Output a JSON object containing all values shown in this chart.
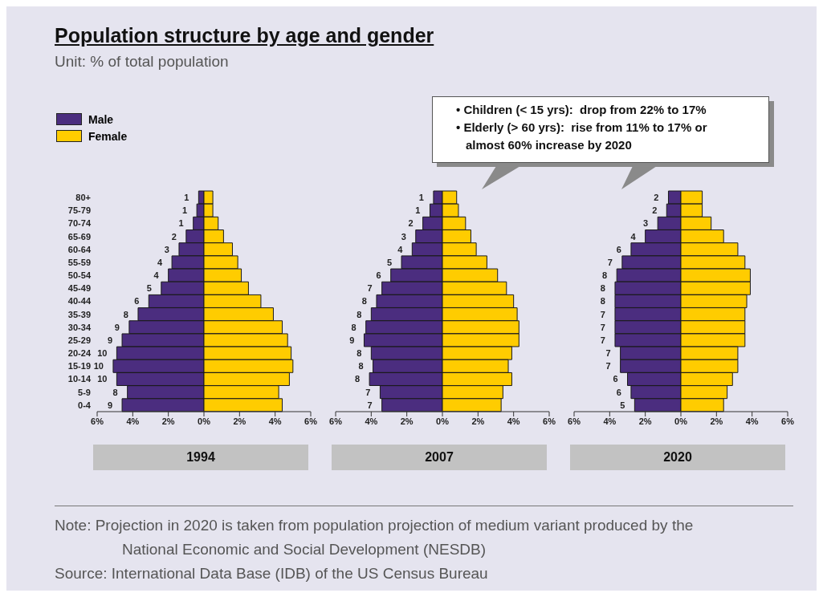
{
  "chart_data": [
    {
      "type": "bar",
      "orientation": "horizontal",
      "stacked": true,
      "title": "Population structure by age and gender",
      "subtitle": "Unit: % of total population",
      "xlabel": "1994",
      "legend": "top left",
      "categories": [
        "80+",
        "75-79",
        "70-74",
        "65-69",
        "60-64",
        "55-59",
        "50-54",
        "45-49",
        "40-44",
        "35-39",
        "30-34",
        "25-29",
        "20-24",
        "15-19",
        "10-14",
        "5-9",
        "0-4"
      ],
      "series": [
        {
          "name": "Male",
          "color": "#4b2d7f",
          "values": [
            -0.3,
            -0.4,
            -0.6,
            -1.0,
            -1.4,
            -1.8,
            -2.0,
            -2.4,
            -3.1,
            -3.7,
            -4.2,
            -4.6,
            -4.9,
            -5.1,
            -4.9,
            -4.3,
            -4.6
          ]
        },
        {
          "name": "Female",
          "color": "#ffcc00",
          "values": [
            0.5,
            0.5,
            0.8,
            1.1,
            1.6,
            1.9,
            2.1,
            2.5,
            3.2,
            3.9,
            4.4,
            4.7,
            4.9,
            5.0,
            4.8,
            4.2,
            4.4
          ]
        }
      ],
      "xlim": [
        -6,
        6
      ],
      "xticks": [
        {
          "value": -6,
          "label": "6%"
        },
        {
          "value": -4,
          "label": "4%"
        },
        {
          "value": -2,
          "label": "2%"
        },
        {
          "value": 0,
          "label": "0%"
        },
        {
          "value": 2,
          "label": "2%"
        },
        {
          "value": 4,
          "label": "4%"
        },
        {
          "value": 6,
          "label": "6%"
        }
      ],
      "annotations": [
        {
          "text": "1",
          "x": -0.3,
          "y": "80+"
        },
        {
          "text": "1",
          "x": -0.4,
          "y": "75-79"
        },
        {
          "text": "1",
          "x": -0.6,
          "y": "70-74"
        },
        {
          "text": "2",
          "x": -1.0,
          "y": "65-69"
        },
        {
          "text": "3",
          "x": -1.4,
          "y": "60-64"
        },
        {
          "text": "4",
          "x": -1.8,
          "y": "55-59"
        },
        {
          "text": "4",
          "x": -2.0,
          "y": "50-54"
        },
        {
          "text": "5",
          "x": -2.4,
          "y": "45-49"
        },
        {
          "text": "6",
          "x": -3.1,
          "y": "40-44"
        },
        {
          "text": "8",
          "x": -3.7,
          "y": "35-39"
        },
        {
          "text": "9",
          "x": -4.2,
          "y": "30-34"
        },
        {
          "text": "9",
          "x": -4.6,
          "y": "25-29"
        },
        {
          "text": "10",
          "x": -4.9,
          "y": "20-24"
        },
        {
          "text": "10",
          "x": -5.1,
          "y": "15-19"
        },
        {
          "text": "10",
          "x": -4.9,
          "y": "10-14"
        },
        {
          "text": "8",
          "x": -4.3,
          "y": "5-9"
        },
        {
          "text": "9",
          "x": -4.6,
          "y": "0-4"
        },
        "Note: Projection in 2020 is taken from population projection of medium variant produced by the National Economic and Social Development (NESDB)",
        "Source: International Data Base (IDB) of the US Census Bureau"
      ]
    },
    {
      "type": "bar",
      "orientation": "horizontal",
      "stacked": true,
      "xlabel": "2007",
      "tick_labels": "x",
      "categories": [
        "80+",
        "75-79",
        "70-74",
        "65-69",
        "60-64",
        "55-59",
        "50-54",
        "45-49",
        "40-44",
        "35-39",
        "30-34",
        "25-29",
        "20-24",
        "15-19",
        "10-14",
        "5-9",
        "0-4"
      ],
      "series": [
        {
          "color": "#4b2d7f",
          "values": [
            -0.5,
            -0.7,
            -1.1,
            -1.5,
            -1.7,
            -2.3,
            -2.9,
            -3.4,
            -3.7,
            -4.0,
            -4.3,
            -4.4,
            -4.0,
            -3.9,
            -4.1,
            -3.5,
            -3.4
          ]
        },
        {
          "color": "#ffcc00",
          "values": [
            0.8,
            0.9,
            1.3,
            1.6,
            1.9,
            2.5,
            3.1,
            3.6,
            4.0,
            4.2,
            4.3,
            4.3,
            3.9,
            3.7,
            3.9,
            3.4,
            3.3
          ]
        }
      ],
      "xlim": [
        -6,
        6
      ],
      "xticks": [
        {
          "value": -6,
          "label": "6%"
        },
        {
          "value": -4,
          "label": "4%"
        },
        {
          "value": -2,
          "label": "2%"
        },
        {
          "value": 0,
          "label": "0%"
        },
        {
          "value": 2,
          "label": "2%"
        },
        {
          "value": 4,
          "label": "4%"
        },
        {
          "value": 6,
          "label": "6%"
        }
      ],
      "annotations": [
        {
          "text": "1",
          "x": -0.5,
          "y": "80+"
        },
        {
          "text": "1",
          "x": -0.7,
          "y": "75-79"
        },
        {
          "text": "2",
          "x": -1.1,
          "y": "70-74"
        },
        {
          "text": "3",
          "x": -1.5,
          "y": "65-69"
        },
        {
          "text": "4",
          "x": -1.7,
          "y": "60-64"
        },
        {
          "text": "5",
          "x": -2.3,
          "y": "55-59"
        },
        {
          "text": "6",
          "x": -2.9,
          "y": "50-54"
        },
        {
          "text": "7",
          "x": -3.4,
          "y": "45-49"
        },
        {
          "text": "8",
          "x": -3.7,
          "y": "40-44"
        },
        {
          "text": "8",
          "x": -4.0,
          "y": "35-39"
        },
        {
          "text": "8",
          "x": -4.3,
          "y": "30-34"
        },
        {
          "text": "9",
          "x": -4.4,
          "y": "25-29"
        },
        {
          "text": "8",
          "x": -4.0,
          "y": "20-24"
        },
        {
          "text": "8",
          "x": -3.9,
          "y": "15-19"
        },
        {
          "text": "8",
          "x": -4.1,
          "y": "10-14"
        },
        {
          "text": "7",
          "x": -3.5,
          "y": "5-9"
        },
        {
          "text": "7",
          "x": -3.4,
          "y": "0-4"
        },
        "• Children (< 15 yrs):  drop from 22% to 17%",
        "• Elderly (> 60 yrs):  rise from 11% to 17% or almost 60% increase by 2020"
      ]
    },
    {
      "type": "bar",
      "orientation": "horizontal",
      "stacked": true,
      "xlabel": "2020",
      "tick_labels": "x",
      "categories": [
        "80+",
        "75-79",
        "70-74",
        "65-69",
        "60-64",
        "55-59",
        "50-54",
        "45-49",
        "40-44",
        "35-39",
        "30-34",
        "25-29",
        "20-24",
        "15-19",
        "10-14",
        "5-9",
        "0-4"
      ],
      "series": [
        {
          "color": "#4b2d7f",
          "values": [
            -0.7,
            -0.8,
            -1.3,
            -2.0,
            -2.8,
            -3.3,
            -3.6,
            -3.7,
            -3.7,
            -3.7,
            -3.7,
            -3.7,
            -3.4,
            -3.4,
            -3.0,
            -2.8,
            -2.6
          ]
        },
        {
          "color": "#ffcc00",
          "values": [
            1.2,
            1.2,
            1.7,
            2.4,
            3.2,
            3.6,
            3.9,
            3.9,
            3.7,
            3.6,
            3.6,
            3.6,
            3.2,
            3.2,
            2.9,
            2.6,
            2.4
          ]
        }
      ],
      "xlim": [
        -6,
        6
      ],
      "xticks": [
        {
          "value": -6,
          "label": "6%"
        },
        {
          "value": -4,
          "label": "4%"
        },
        {
          "value": -2,
          "label": "2%"
        },
        {
          "value": 0,
          "label": "0%"
        },
        {
          "value": 2,
          "label": "2%"
        },
        {
          "value": 4,
          "label": "4%"
        },
        {
          "value": 6,
          "label": "6%"
        }
      ],
      "annotations": [
        {
          "text": "2",
          "x": -0.7,
          "y": "80+"
        },
        {
          "text": "2",
          "x": -0.8,
          "y": "75-79"
        },
        {
          "text": "3",
          "x": -1.3,
          "y": "70-74"
        },
        {
          "text": "4",
          "x": -2.0,
          "y": "65-69"
        },
        {
          "text": "6",
          "x": -2.8,
          "y": "60-64"
        },
        {
          "text": "7",
          "x": -3.3,
          "y": "55-59"
        },
        {
          "text": "8",
          "x": -3.6,
          "y": "50-54"
        },
        {
          "text": "8",
          "x": -3.7,
          "y": "45-49"
        },
        {
          "text": "8",
          "x": -3.7,
          "y": "40-44"
        },
        {
          "text": "7",
          "x": -3.7,
          "y": "35-39"
        },
        {
          "text": "7",
          "x": -3.7,
          "y": "30-34"
        },
        {
          "text": "7",
          "x": -3.7,
          "y": "25-29"
        },
        {
          "text": "7",
          "x": -3.4,
          "y": "20-24"
        },
        {
          "text": "7",
          "x": -3.4,
          "y": "15-19"
        },
        {
          "text": "6",
          "x": -3.0,
          "y": "10-14"
        },
        {
          "text": "6",
          "x": -2.8,
          "y": "5-9"
        },
        {
          "text": "5",
          "x": -2.6,
          "y": "0-4"
        }
      ]
    }
  ]
}
